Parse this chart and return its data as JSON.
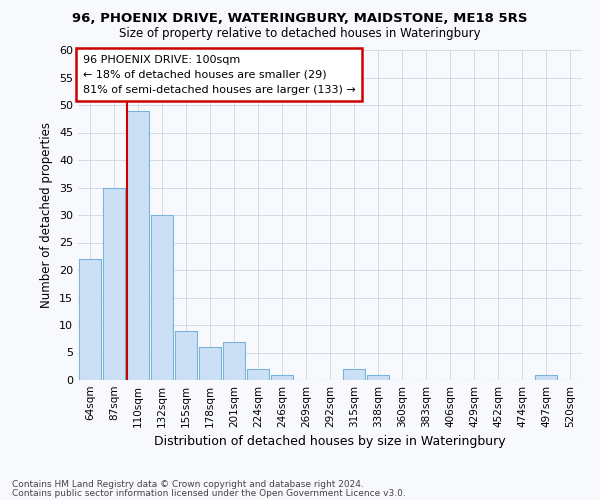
{
  "title1": "96, PHOENIX DRIVE, WATERINGBURY, MAIDSTONE, ME18 5RS",
  "title2": "Size of property relative to detached houses in Wateringbury",
  "xlabel": "Distribution of detached houses by size in Wateringbury",
  "ylabel": "Number of detached properties",
  "categories": [
    "64sqm",
    "87sqm",
    "110sqm",
    "132sqm",
    "155sqm",
    "178sqm",
    "201sqm",
    "224sqm",
    "246sqm",
    "269sqm",
    "292sqm",
    "315sqm",
    "338sqm",
    "360sqm",
    "383sqm",
    "406sqm",
    "429sqm",
    "452sqm",
    "474sqm",
    "497sqm",
    "520sqm"
  ],
  "values": [
    22,
    35,
    49,
    30,
    9,
    6,
    7,
    2,
    1,
    0,
    0,
    2,
    1,
    0,
    0,
    0,
    0,
    0,
    0,
    1,
    0
  ],
  "bar_color": "#cce0f5",
  "bar_edge_color": "#7ab3d9",
  "vline_x_index": 2,
  "vline_color": "#cc0000",
  "ylim": [
    0,
    60
  ],
  "yticks": [
    0,
    5,
    10,
    15,
    20,
    25,
    30,
    35,
    40,
    45,
    50,
    55,
    60
  ],
  "annotation_title": "96 PHOENIX DRIVE: 100sqm",
  "annotation_line1": "← 18% of detached houses are smaller (29)",
  "annotation_line2": "81% of semi-detached houses are larger (133) →",
  "annotation_box_facecolor": "#ffffff",
  "annotation_box_edgecolor": "#cc0000",
  "footer1": "Contains HM Land Registry data © Crown copyright and database right 2024.",
  "footer2": "Contains public sector information licensed under the Open Government Licence v3.0.",
  "bg_color": "#f7f9fd",
  "plot_bg_color": "#f7f9fd",
  "grid_color": "#d0dce8"
}
